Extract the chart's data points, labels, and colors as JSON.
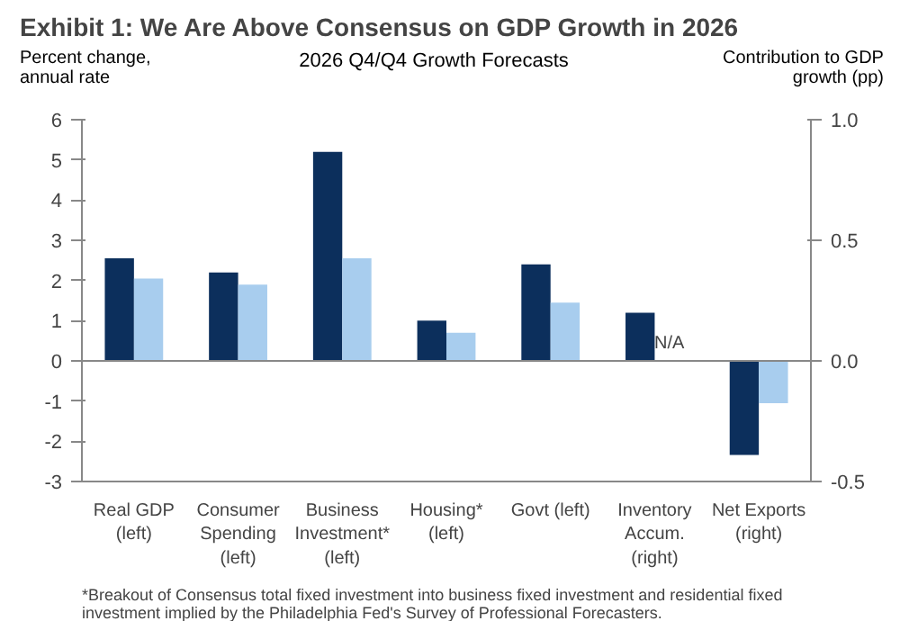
{
  "chart_data": {
    "type": "bar",
    "title": "Exhibit 1: We Are Above Consensus on GDP Growth in 2026",
    "subtitle": "2026 Q4/Q4 Growth Forecasts",
    "ylabel": "Percent change, annual rate",
    "y2label": "Contribution to GDP growth (pp)",
    "categories": [
      "Real GDP (left)",
      "Consumer Spending (left)",
      "Business Investment* (left)",
      "Housing* (left)",
      "Govt (left)",
      "Inventory Accum. (right)",
      "Net Exports (right)"
    ],
    "series": [
      {
        "color": "#0c2f5c",
        "values": [
          2.55,
          2.2,
          5.2,
          1.0,
          2.4,
          null,
          null
        ]
      },
      {
        "color": "#a8cdee",
        "values": [
          2.05,
          1.9,
          2.55,
          0.7,
          1.45,
          null,
          null
        ]
      },
      {
        "color": "#0c2f5c",
        "axis": "y2",
        "values": [
          null,
          null,
          null,
          null,
          null,
          0.2,
          -0.39
        ]
      },
      {
        "color": "#a8cdee",
        "axis": "y2",
        "values": [
          null,
          null,
          null,
          null,
          null,
          null,
          -0.175
        ]
      }
    ],
    "ylim": [
      -3,
      6
    ],
    "yticks": [
      -3,
      -2,
      -1,
      0,
      1,
      2,
      3,
      4,
      5,
      6
    ],
    "y2lim": [
      -0.5,
      1.0
    ],
    "y2ticks": [
      -0.5,
      {
        "value": 0,
        "label": "0.0"
      },
      0.5,
      {
        "value": 1,
        "label": "1.0"
      }
    ],
    "annotations": [
      {
        "text": "N/A",
        "x": "Inventory Accum. (right)"
      },
      "*Breakout of Consensus total fixed investment into business fixed investment and residential fixed investment implied by the Philadelphia Fed's Survey of Professional Forecasters."
    ]
  }
}
